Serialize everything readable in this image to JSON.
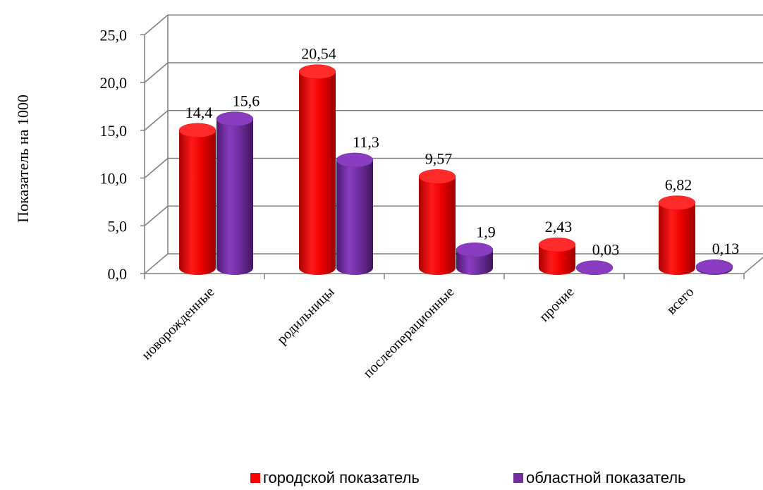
{
  "chart_data": {
    "type": "bar",
    "ylabel": "Показатель на 1000",
    "ylim": [
      0,
      25
    ],
    "yticks": [
      "0,0",
      "5,0",
      "10,0",
      "15,0",
      "20,0",
      "25,0"
    ],
    "yticks_values": [
      0,
      5,
      10,
      15,
      20,
      25
    ],
    "categories": [
      "новорожденные",
      "родильницы",
      "послеоперационные",
      "прочие",
      "всего"
    ],
    "series": [
      {
        "name": "городской показатель",
        "color": "#ff0000",
        "values": [
          14.4,
          20.54,
          9.57,
          2.43,
          6.82
        ],
        "labels": [
          "14,4",
          "20,54",
          "9,57",
          "2,43",
          "6,82"
        ]
      },
      {
        "name": "областной показатель",
        "color": "#7030a0",
        "values": [
          15.6,
          11.3,
          1.9,
          0.03,
          0.13
        ],
        "labels": [
          "15,6",
          "11,3",
          "1,9",
          "0,03",
          "0,13"
        ]
      }
    ],
    "grid": true,
    "legend_position": "bottom",
    "style": "3d-cylinder"
  }
}
